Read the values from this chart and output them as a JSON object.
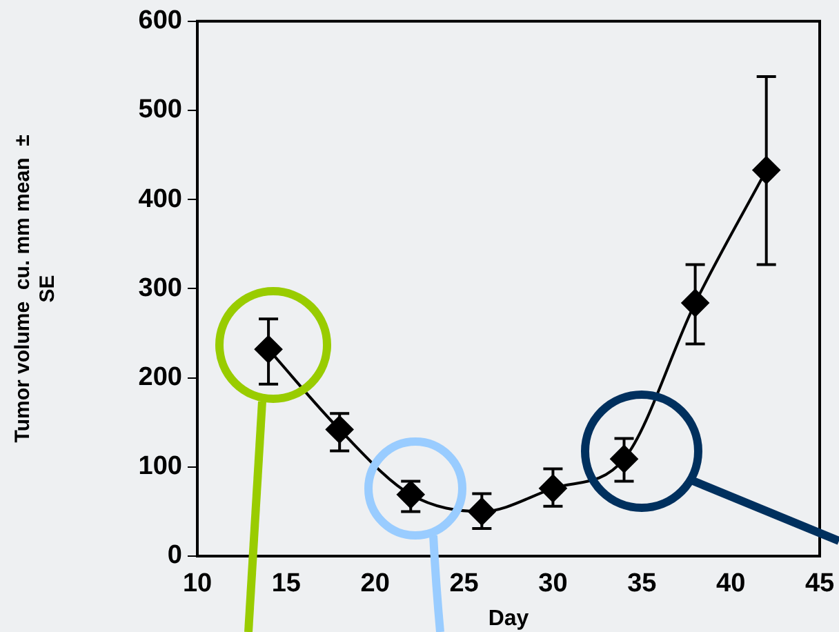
{
  "chart_data": {
    "type": "line",
    "xlabel": "Day",
    "ylabel": "Tumor volume  cu. mm mean  ± SE",
    "x": [
      14,
      18,
      22,
      26,
      30,
      34,
      38,
      42
    ],
    "series": [
      {
        "color": "#000000",
        "values": [
          232,
          142,
          69,
          50,
          76,
          109,
          284,
          433
        ],
        "errors": [
          [
            193,
            266
          ],
          [
            118,
            160
          ],
          [
            50,
            84
          ],
          [
            31,
            70
          ],
          [
            56,
            98
          ],
          [
            84,
            132
          ],
          [
            238,
            327
          ],
          [
            327,
            538
          ]
        ]
      }
    ],
    "xlim": [
      10,
      45
    ],
    "xticks": [
      10,
      15,
      20,
      25,
      30,
      35,
      40,
      45
    ],
    "ylim": [
      0,
      600
    ],
    "yticks": [
      0,
      100,
      200,
      300,
      400,
      500,
      600
    ],
    "grid": false,
    "legend": false,
    "marker": "diamond",
    "line_style": "solid"
  }
}
